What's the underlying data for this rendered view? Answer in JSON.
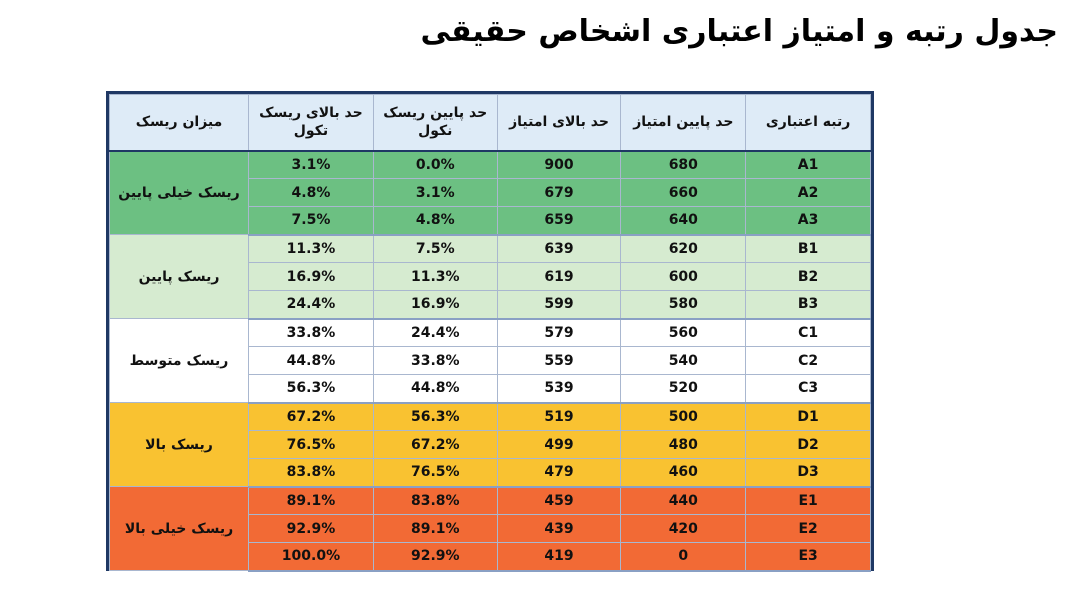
{
  "title": "جدول رتبه و امتیاز اعتباری اشخاص حقیقی",
  "headers": {
    "rank": "رتبه اعتباری",
    "score_min": "حد پایین امتیاز",
    "score_max": "حد بالای امتیاز",
    "default_low": "حد پایین ریسک نکول",
    "default_high": "حد بالای ریسک تکول",
    "risk_level": "میزان ریسک"
  },
  "groups": [
    {
      "risk": "ریسک خیلی پایین",
      "color": "#6cc082",
      "rows": [
        {
          "rank": "A1",
          "min": "680",
          "max": "900",
          "plow": "0.0%",
          "phigh": "3.1%"
        },
        {
          "rank": "A2",
          "min": "660",
          "max": "679",
          "plow": "3.1%",
          "phigh": "4.8%"
        },
        {
          "rank": "A3",
          "min": "640",
          "max": "659",
          "plow": "4.8%",
          "phigh": "7.5%"
        }
      ]
    },
    {
      "risk": "ریسک پایین",
      "color": "#d6ebd0",
      "rows": [
        {
          "rank": "B1",
          "min": "620",
          "max": "639",
          "plow": "7.5%",
          "phigh": "11.3%"
        },
        {
          "rank": "B2",
          "min": "600",
          "max": "619",
          "plow": "11.3%",
          "phigh": "16.9%"
        },
        {
          "rank": "B3",
          "min": "580",
          "max": "599",
          "plow": "16.9%",
          "phigh": "24.4%"
        }
      ]
    },
    {
      "risk": "ریسک متوسط",
      "color": "#ffffff",
      "rows": [
        {
          "rank": "C1",
          "min": "560",
          "max": "579",
          "plow": "24.4%",
          "phigh": "33.8%"
        },
        {
          "rank": "C2",
          "min": "540",
          "max": "559",
          "plow": "33.8%",
          "phigh": "44.8%"
        },
        {
          "rank": "C3",
          "min": "520",
          "max": "539",
          "plow": "44.8%",
          "phigh": "56.3%"
        }
      ]
    },
    {
      "risk": "ریسک بالا",
      "color": "#f9c231",
      "rows": [
        {
          "rank": "D1",
          "min": "500",
          "max": "519",
          "plow": "56.3%",
          "phigh": "67.2%"
        },
        {
          "rank": "D2",
          "min": "480",
          "max": "499",
          "plow": "67.2%",
          "phigh": "76.5%"
        },
        {
          "rank": "D3",
          "min": "460",
          "max": "479",
          "plow": "76.5%",
          "phigh": "83.8%"
        }
      ]
    },
    {
      "risk": "ریسک خیلی بالا",
      "color": "#f26a35",
      "rows": [
        {
          "rank": "E1",
          "min": "440",
          "max": "459",
          "plow": "83.8%",
          "phigh": "89.1%"
        },
        {
          "rank": "E2",
          "min": "420",
          "max": "439",
          "plow": "89.1%",
          "phigh": "92.9%"
        },
        {
          "rank": "E3",
          "min": "0",
          "max": "419",
          "plow": "92.9%",
          "phigh": "100.0%"
        }
      ]
    }
  ]
}
